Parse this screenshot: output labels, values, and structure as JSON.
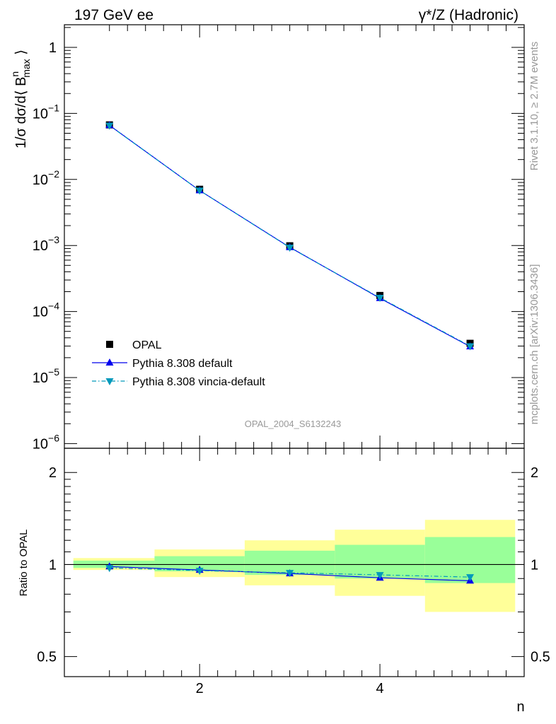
{
  "header": {
    "left": "197 GeV ee",
    "right": "γ*/Z (Hadronic)"
  },
  "side_labels": {
    "rivet": "Rivet 3.1.10, ≥ 2.7M events",
    "mcplots": "mcplots.cern.ch [arXiv:1306.3436]"
  },
  "analysis_id": "OPAL_2004_S6132243",
  "chart_data": [
    {
      "type": "line",
      "panel": "main",
      "ylabel": "1/σ dσ/d⟨ B_max^n ⟩",
      "yscale": "log",
      "ylim": [
        8.5e-07,
        2.2
      ],
      "xlim": [
        0.5,
        5.6
      ],
      "ytick_labels": [
        {
          "base": "1",
          "exp": "",
          "value": 1
        },
        {
          "base": "10",
          "exp": "−1",
          "value": 0.1
        },
        {
          "base": "10",
          "exp": "−2",
          "value": 0.01
        },
        {
          "base": "10",
          "exp": "−3",
          "value": 0.001
        },
        {
          "base": "10",
          "exp": "−4",
          "value": 0.0001
        },
        {
          "base": "10",
          "exp": "−5",
          "value": 1e-05
        },
        {
          "base": "10",
          "exp": "−6",
          "value": 1e-06
        }
      ],
      "legend": {
        "placement": "bottom-left",
        "entries": [
          {
            "label": "OPAL",
            "marker": "square",
            "color": "#000000"
          },
          {
            "label": "Pythia 8.308 default",
            "marker": "triangle-up",
            "color": "#0000ee",
            "line": "solid"
          },
          {
            "label": "Pythia 8.308 vincia-default",
            "marker": "triangle-down",
            "color": "#0099bb",
            "line": "dashdot"
          }
        ]
      },
      "series": [
        {
          "name": "OPAL",
          "x": [
            1,
            2,
            3,
            4,
            5
          ],
          "y": [
            0.067,
            0.0071,
            0.00099,
            0.000175,
            3.3e-05
          ]
        },
        {
          "name": "Pythia 8.308 default",
          "x": [
            1,
            2,
            3,
            4,
            5
          ],
          "y": [
            0.066,
            0.0068,
            0.00094,
            0.000159,
            2.95e-05
          ]
        },
        {
          "name": "Pythia 8.308 vincia-default",
          "x": [
            1,
            2,
            3,
            4,
            5
          ],
          "y": [
            0.0655,
            0.0068,
            0.00093,
            0.000162,
            3e-05
          ]
        }
      ]
    },
    {
      "type": "line",
      "panel": "ratio",
      "xlabel": "n",
      "ylabel": "Ratio to OPAL",
      "yscale": "log",
      "ylim": [
        0.43,
        2.4
      ],
      "xlim": [
        0.5,
        5.6
      ],
      "xticks": [
        2,
        4
      ],
      "ytick_labels": [
        {
          "text": "2",
          "value": 2
        },
        {
          "text": "1",
          "value": 1
        },
        {
          "text": "0.5",
          "value": 0.5
        }
      ],
      "bands": [
        {
          "x": [
            0.6,
            1.5
          ],
          "yellow": [
            0.96,
            1.05
          ],
          "green": [
            0.975,
            1.03
          ]
        },
        {
          "x": [
            1.5,
            2.5
          ],
          "yellow": [
            0.91,
            1.12
          ],
          "green": [
            0.95,
            1.065
          ]
        },
        {
          "x": [
            2.5,
            3.5
          ],
          "yellow": [
            0.855,
            1.2
          ],
          "green": [
            0.925,
            1.11
          ]
        },
        {
          "x": [
            3.5,
            4.5
          ],
          "yellow": [
            0.79,
            1.3
          ],
          "green": [
            0.9,
            1.16
          ]
        },
        {
          "x": [
            4.5,
            5.5
          ],
          "yellow": [
            0.7,
            1.4
          ],
          "green": [
            0.87,
            1.23
          ]
        }
      ],
      "series": [
        {
          "name": "Pythia 8.308 default",
          "x": [
            1,
            2,
            3,
            4,
            5
          ],
          "y": [
            0.985,
            0.96,
            0.935,
            0.905,
            0.885
          ]
        },
        {
          "name": "Pythia 8.308 vincia-default",
          "x": [
            1,
            2,
            3,
            4,
            5
          ],
          "y": [
            0.975,
            0.955,
            0.94,
            0.925,
            0.91
          ]
        }
      ]
    }
  ]
}
